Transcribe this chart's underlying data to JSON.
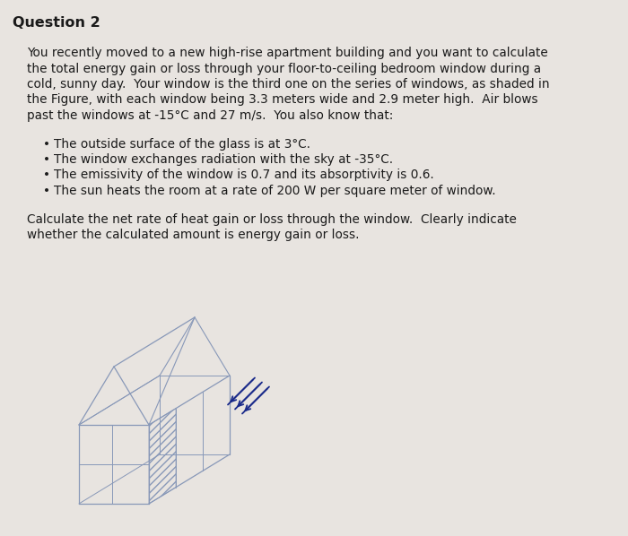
{
  "title": "Question 2",
  "background_color": "#e8e4e0",
  "text_color": "#1a1a1a",
  "title_fontsize": 11.5,
  "body_fontsize": 9.8,
  "paragraph1_lines": [
    "You recently moved to a new high-rise apartment building and you want to calculate",
    "the total energy gain or loss through your floor-to-ceiling bedroom window during a",
    "cold, sunny day.  Your window is the third one on the series of windows, as shaded in",
    "the Figure, with each window being 3.3 meters wide and 2.9 meter high.  Air blows",
    "past the windows at -15°C and 27 m/s.  You also know that:"
  ],
  "bullets": [
    "The outside surface of the glass is at 3°C.",
    "The window exchanges radiation with the sky at -35°C.",
    "The emissivity of the window is 0.7 and its absorptivity is 0.6.",
    "The sun heats the room at a rate of 200 W per square meter of window."
  ],
  "paragraph2_lines": [
    "Calculate the net rate of heat gain or loss through the window.  Clearly indicate",
    "whether the calculated amount is energy gain or loss."
  ],
  "drawing_color": "#6878a8",
  "drawing_color_light": "#8898b8",
  "arrow_color": "#1a2a8a"
}
